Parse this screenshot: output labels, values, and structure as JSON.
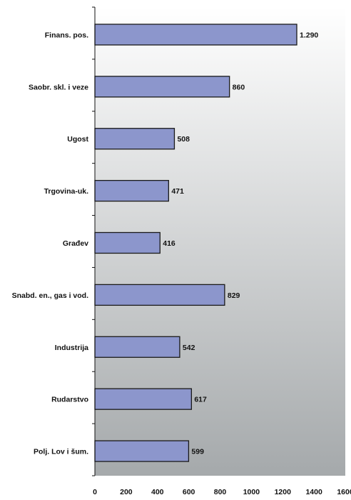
{
  "chart_data": {
    "type": "bar",
    "orientation": "horizontal",
    "title": "",
    "xlabel": "",
    "ylabel": "",
    "xlim": [
      0,
      1600
    ],
    "x_ticks": [
      0,
      200,
      400,
      600,
      800,
      1000,
      1200,
      1400,
      1600
    ],
    "x_tick_labels": [
      "0",
      "200",
      "400",
      "600",
      "800",
      "1000",
      "1200",
      "1400",
      "1600"
    ],
    "categories": [
      "Finans. pos.",
      "Saobr. skl. i veze",
      "Ugost",
      "Trgovina-uk.",
      "Građev",
      "Snabd. en., gas i vod.",
      "Industrija",
      "Rudarstvo",
      "Polj. Lov i šum."
    ],
    "values": [
      1290,
      860,
      508,
      471,
      416,
      829,
      542,
      617,
      599
    ],
    "value_labels": [
      "1.290",
      "860",
      "508",
      "471",
      "416",
      "829",
      "542",
      "617",
      "599"
    ],
    "grid": false,
    "legend": "none",
    "colors": {
      "bar_fill": "#8c96cc",
      "bar_stroke": "#1a1a1a",
      "plot_bg_top": "#ffffff",
      "plot_bg_bottom": "#a5a9ab"
    }
  }
}
